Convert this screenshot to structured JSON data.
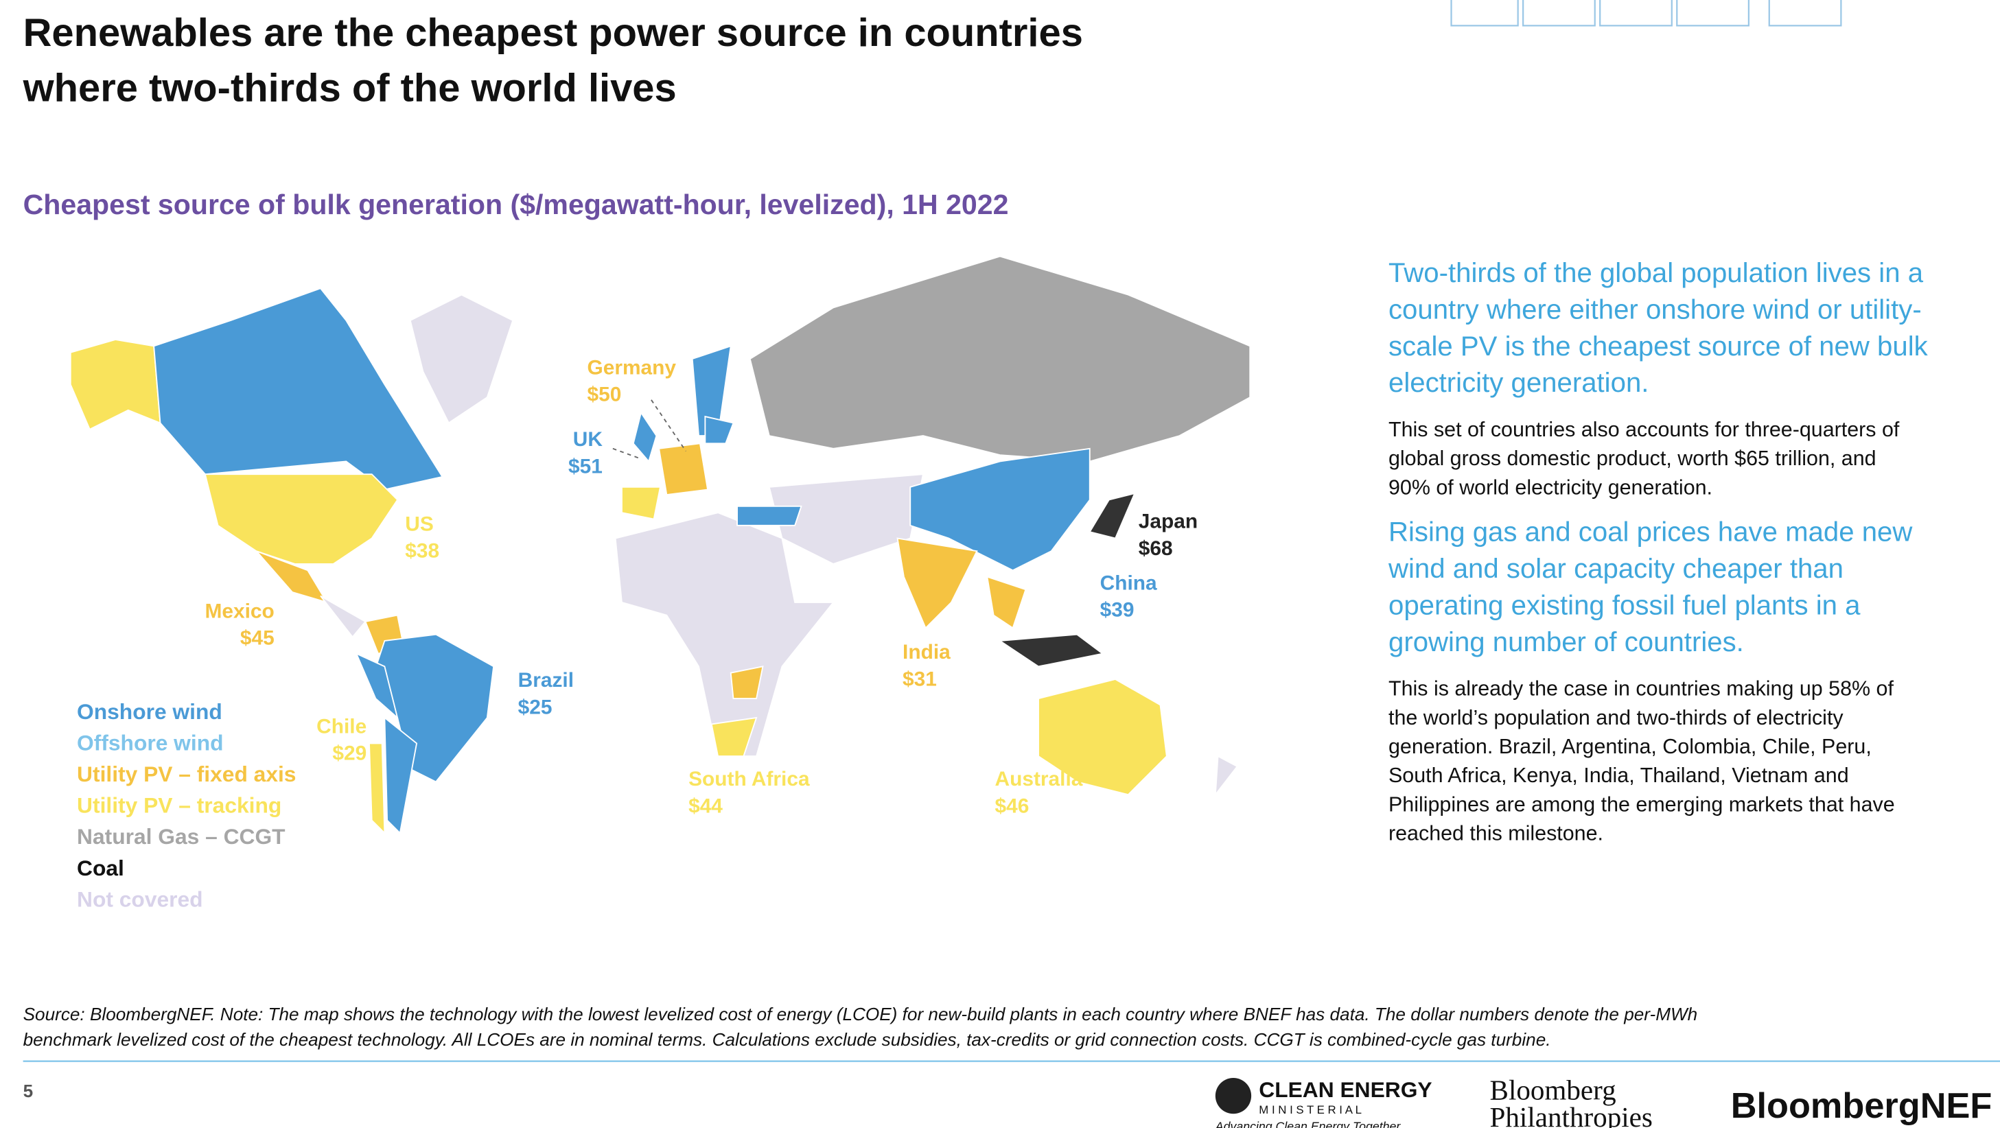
{
  "header": {
    "title": [
      "Renewables are the cheapest power source in countries",
      "where two-thirds of the world lives"
    ],
    "subtitle": "Cheapest source of bulk generation ($/megawatt-hour, levelized), 1H 2022"
  },
  "map": {
    "labels": [
      {
        "name": "Germany",
        "price": "$50"
      },
      {
        "name": "UK",
        "price": "$51"
      },
      {
        "name": "US",
        "price": "$38"
      },
      {
        "name": "Mexico",
        "price": "$45"
      },
      {
        "name": "Brazil",
        "price": "$25"
      },
      {
        "name": "Chile",
        "price": "$29"
      },
      {
        "name": "South Africa",
        "price": "$44"
      },
      {
        "name": "India",
        "price": "$31"
      },
      {
        "name": "China",
        "price": "$39"
      },
      {
        "name": "Japan",
        "price": "$68"
      },
      {
        "name": "Australia",
        "price": "$46"
      }
    ],
    "legend": [
      "Onshore wind",
      "Offshore wind",
      "Utility PV – fixed axis",
      "Utility PV – tracking",
      "Natural Gas – CCGT",
      "Coal",
      "Not covered"
    ]
  },
  "side": {
    "paragraphs": [
      [
        "Two-thirds of the global population lives in a",
        "country where either onshore wind or utility-",
        "scale PV is the cheapest source of new bulk",
        "electricity generation."
      ],
      [
        "This set of countries also accounts for three-quarters of",
        "global gross domestic product, worth $65 trillion, and",
        "90% of world electricity generation."
      ],
      [
        "Rising gas and coal prices have made new",
        "wind and solar capacity cheaper than",
        "operating existing fossil fuel plants in a",
        "growing number of countries."
      ],
      [
        "This is already the case in countries making up 58% of",
        "the world’s population and two-thirds of electricity",
        "generation. Brazil, Argentina, Colombia, Chile, Peru,",
        "South Africa, Kenya, India, Thailand, Vietnam and",
        "Philippines are among the emerging markets that have",
        "reached this milestone."
      ]
    ]
  },
  "footer": {
    "source": [
      "Source: BloombergNEF. Note: The map shows the technology with the lowest levelized cost of energy (LCOE) for new-build plants in each country where BNEF has data. The dollar numbers denote the per-MWh",
      "benchmark levelized cost of the cheapest technology. All LCOEs are in nominal terms. Calculations exclude subsidies, tax-credits or grid connection costs. CCGT is combined-cycle gas turbine."
    ],
    "page": "5",
    "logos": [
      "CLEAN ENERGY",
      "M I N I S T E R I A L",
      "Advancing Clean Energy Together",
      "Bloomberg",
      "Philanthropies",
      "BloombergNEF"
    ]
  }
}
